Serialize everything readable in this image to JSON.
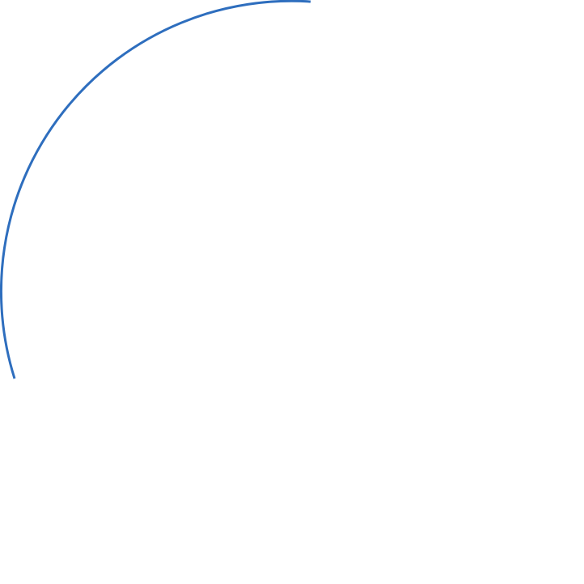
{
  "shape": {
    "type": "arc",
    "stroke_color": "#2E6EBE",
    "fill": "none"
  }
}
